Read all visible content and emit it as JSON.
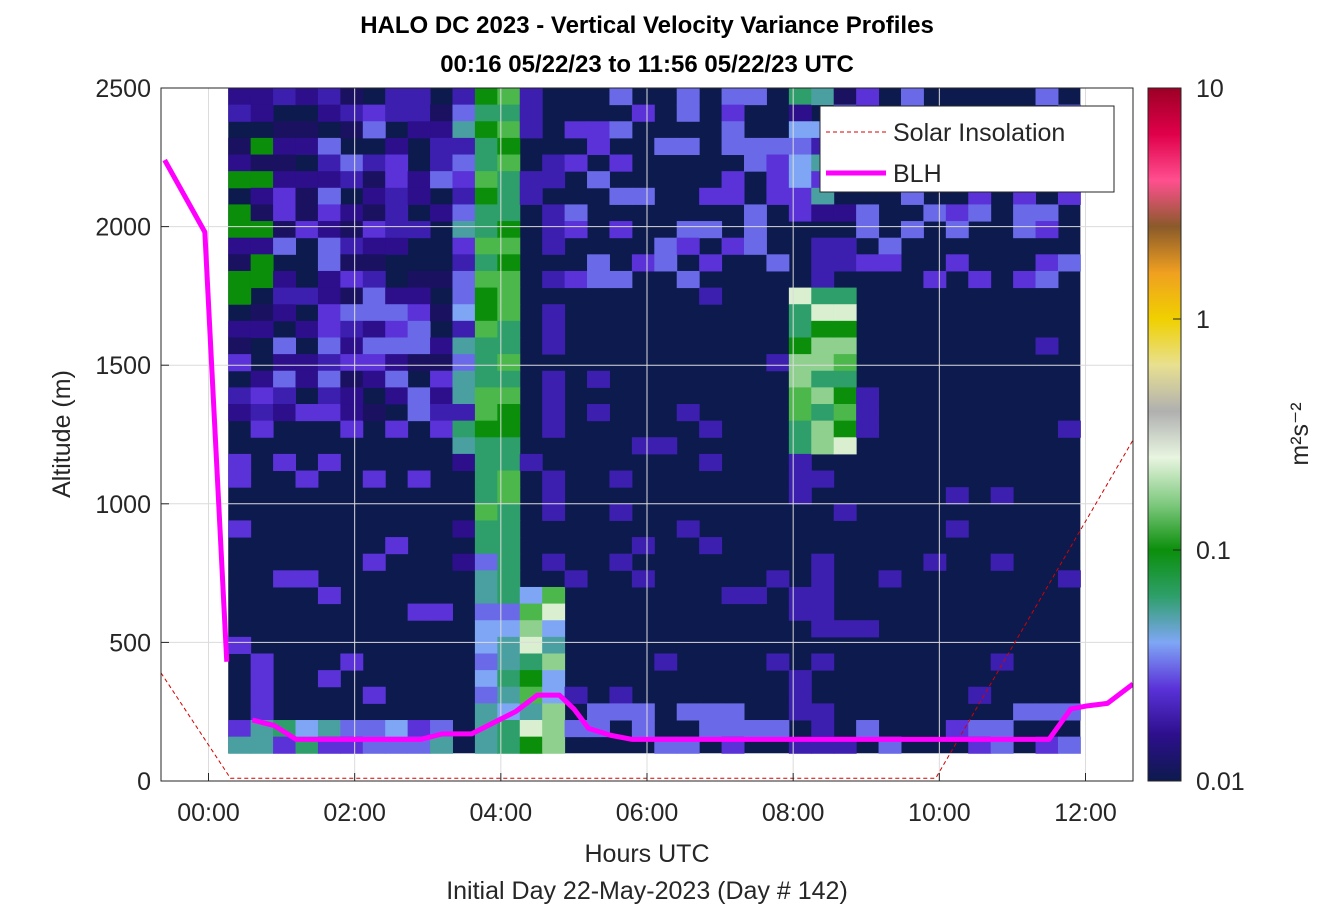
{
  "chart_data": {
    "type": "heatmap",
    "title": "HALO DC 2023 - Vertical Velocity Variance Profiles",
    "subtitle": "00:16 05/22/23 to 11:56 05/22/23  UTC",
    "xlabel": "Hours UTC",
    "xlabel2": "Initial Day 22-May-2023 (Day # 142)",
    "ylabel": "Altitude (m)",
    "colorbar_label": "m²s⁻²",
    "colorbar_scale": "log",
    "colorbar_range": [
      0.01,
      10
    ],
    "colorbar_ticks": [
      "0.01",
      "0.1",
      "1",
      "10"
    ],
    "xlim_hours": [
      -0.65,
      12.65
    ],
    "ylim": [
      0,
      2500
    ],
    "x_ticks": [
      "00:00",
      "02:00",
      "04:00",
      "06:00",
      "08:00",
      "10:00",
      "12:00"
    ],
    "y_ticks": [
      "0",
      "500",
      "1000",
      "1500",
      "2000",
      "2500"
    ],
    "grid": true,
    "legend_position": "top-right",
    "legend": [
      "Solar Insolation",
      "BLH"
    ],
    "data_time_range_hours": [
      0.27,
      11.93
    ],
    "data_alt_range_m": [
      100,
      2500
    ],
    "series": [
      {
        "name": "BLH",
        "color": "#ff00ff",
        "segments": [
          {
            "x": [
              -0.6,
              -0.05,
              0.25
            ],
            "y": [
              2240,
              1980,
              430
            ]
          },
          {
            "x": [
              0.6,
              0.9,
              1.2,
              1.5,
              2.0,
              2.5,
              2.9,
              3.2,
              3.6,
              3.9,
              4.2,
              4.5,
              4.8,
              5.0,
              5.2,
              5.5,
              5.8,
              6.5,
              7.5,
              8.5,
              9.5,
              10.5,
              11.0,
              11.5,
              11.8,
              12.0,
              12.3,
              12.65
            ],
            "y": [
              220,
              200,
              150,
              150,
              150,
              150,
              150,
              170,
              170,
              210,
              250,
              310,
              310,
              260,
              190,
              165,
              150,
              150,
              150,
              150,
              150,
              150,
              150,
              150,
              260,
              270,
              280,
              350
            ]
          }
        ]
      },
      {
        "name": "Solar Insolation",
        "color": "#d40000",
        "x": [
          -0.65,
          0.3,
          9.95,
          12.65
        ],
        "y": [
          390,
          10,
          10,
          1230
        ]
      }
    ],
    "colormap_stops": [
      "#0d1a4d",
      "#2d0f8c",
      "#5a32d8",
      "#7fa6f5",
      "#2e9f6a",
      "#0b8f0b",
      "#7fc97f",
      "#e8f5e0",
      "#b0b0b0",
      "#e8e090",
      "#f0d000",
      "#f0a020",
      "#8a5a2a",
      "#ff4f8f",
      "#e0004a",
      "#9c0025"
    ]
  }
}
